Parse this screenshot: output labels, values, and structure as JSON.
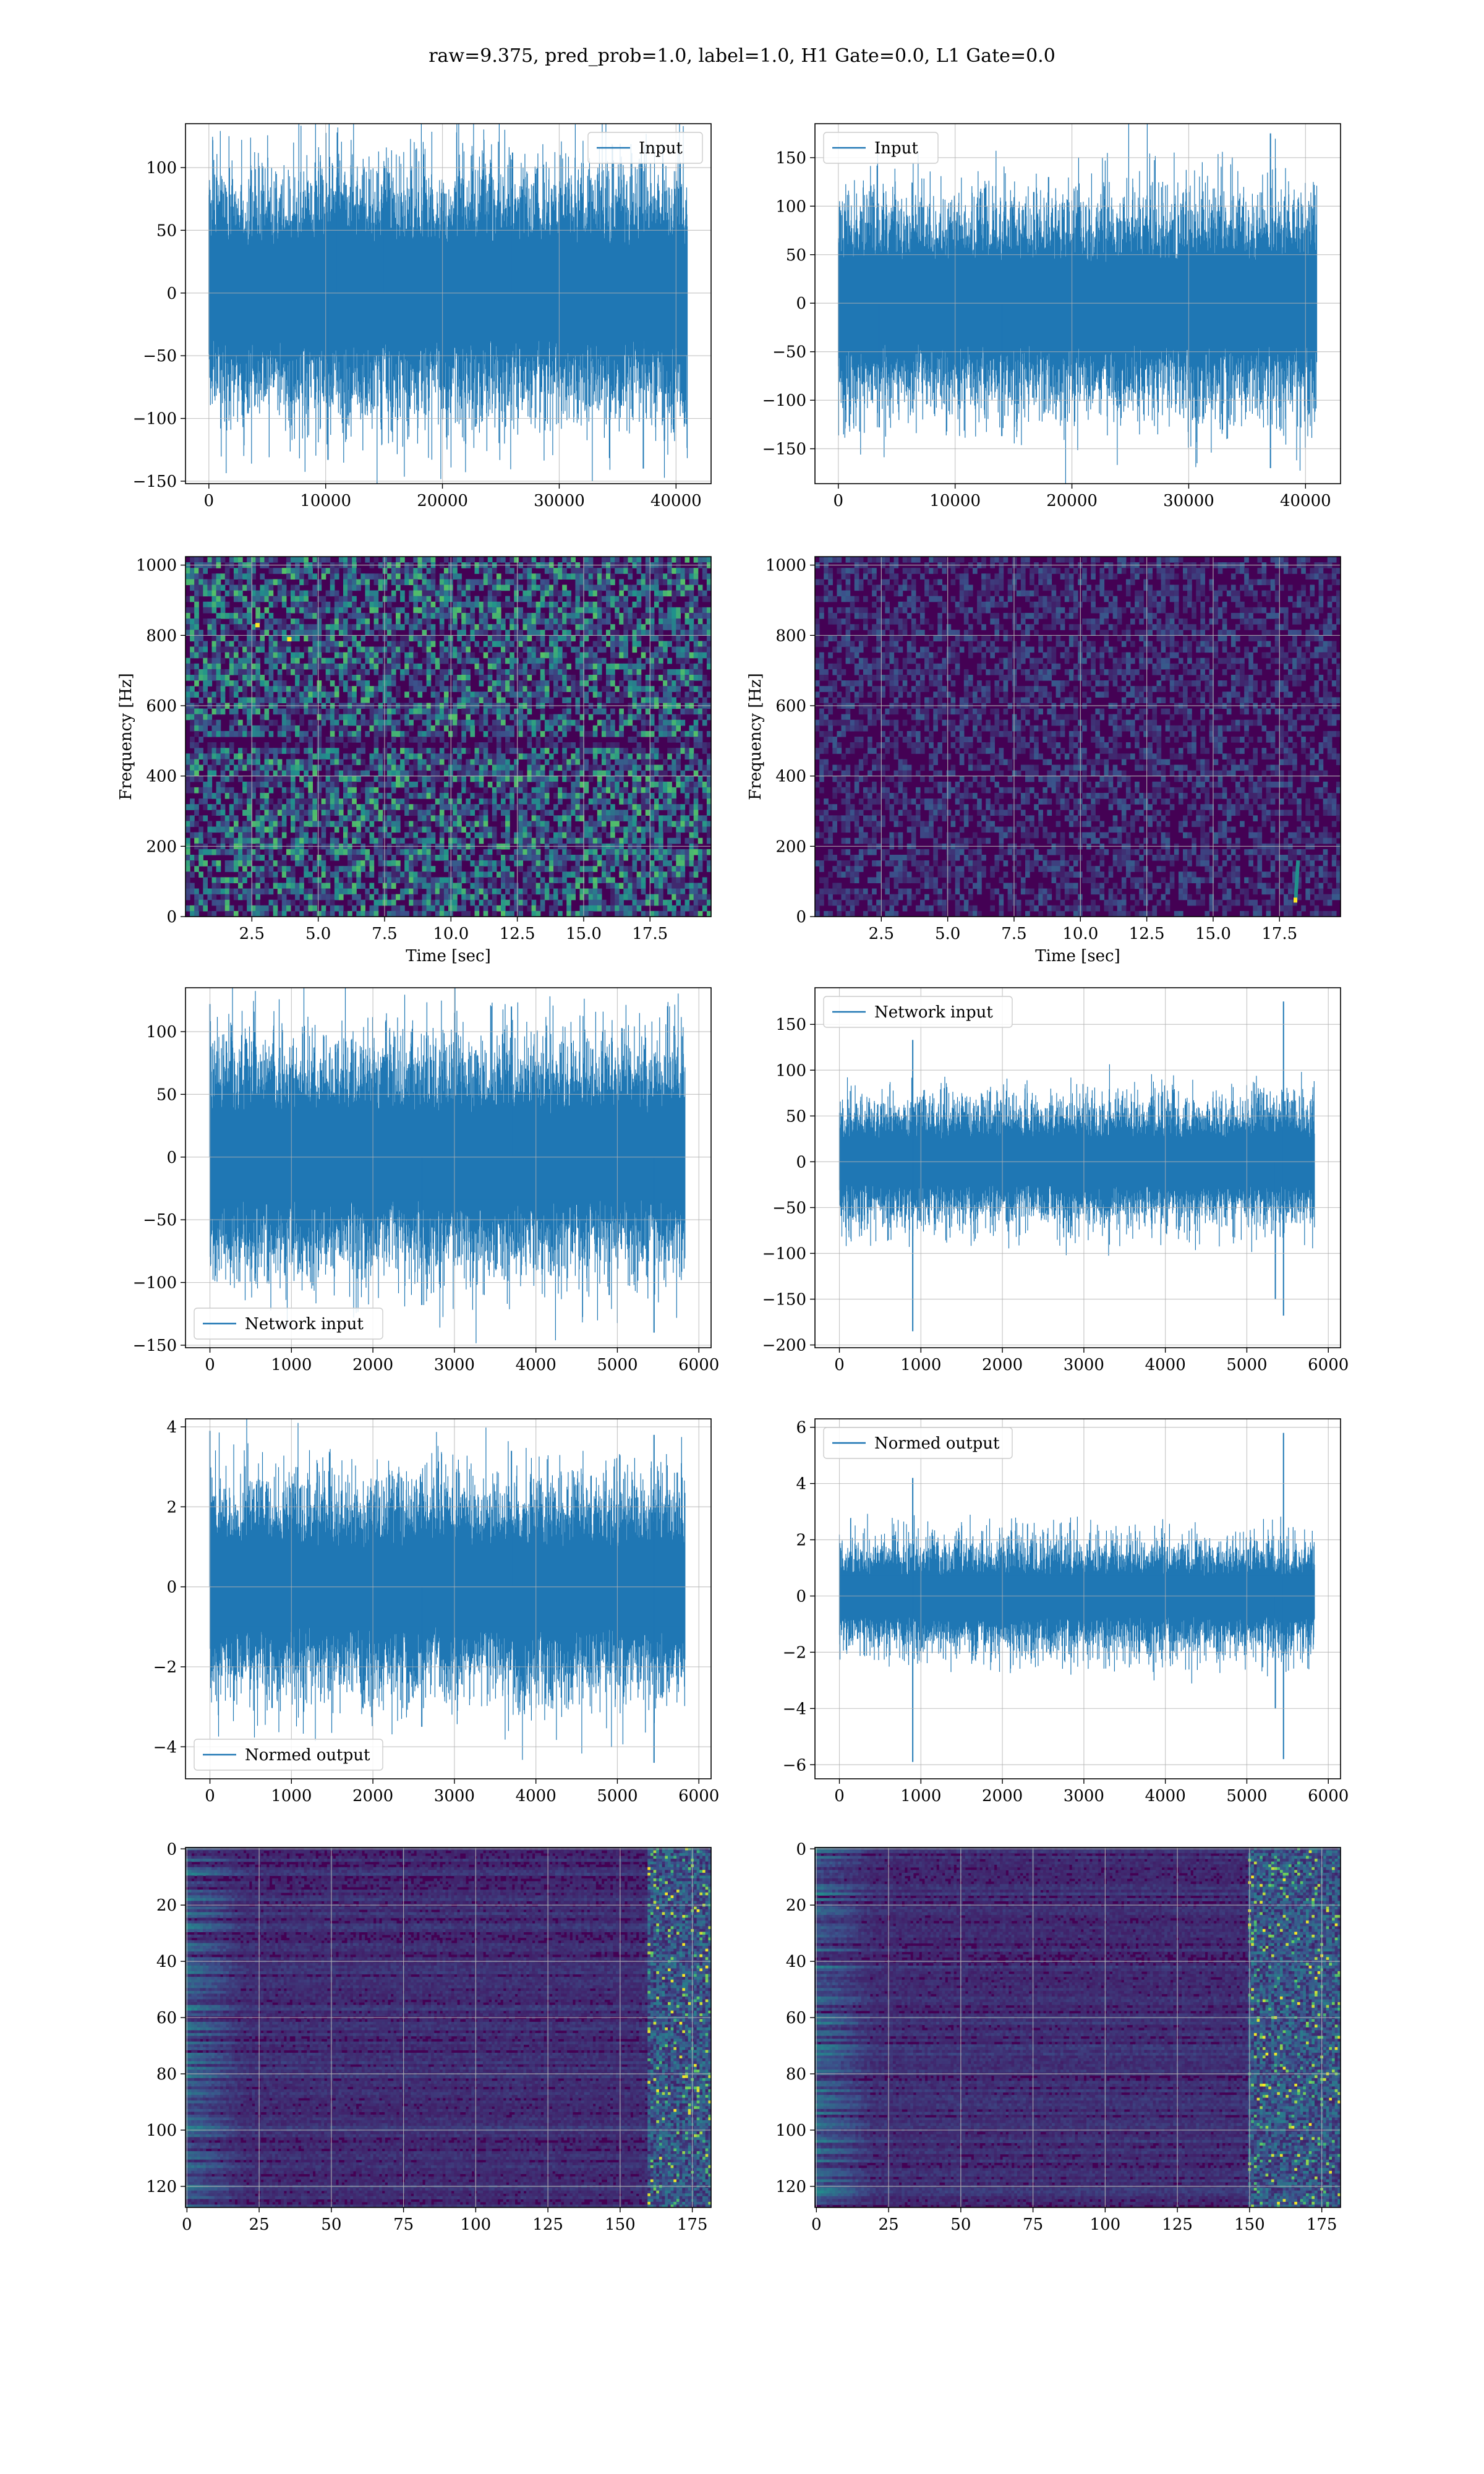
{
  "figure": {
    "suptitle": "raw=9.375, pred_prob=1.0, label=1.0, H1 Gate=0.0, L1 Gate=0.0"
  },
  "colors": {
    "series": "#1f77b4",
    "grid": "#b0b0b0",
    "viridis_low": "#440154",
    "viridis_mid": "#21918c",
    "viridis_high": "#fde725"
  },
  "chart_data": [
    {
      "id": "p00",
      "type": "line",
      "legend": "Input",
      "legend_loc": "upper right",
      "xlim": [
        -2000,
        43000
      ],
      "ylim": [
        -152,
        135
      ],
      "xticks": [
        0,
        10000,
        20000,
        30000,
        40000
      ],
      "yticks": [
        -150,
        -100,
        -50,
        0,
        50,
        100
      ],
      "series": [
        {
          "name": "Input",
          "x_range": [
            0,
            40960
          ],
          "band": 68,
          "peak": 112,
          "trough": -100,
          "spikes": [
            [
              11000,
              128
            ],
            [
              10200,
              -133
            ],
            [
              37200,
              -140
            ],
            [
              39000,
              -118
            ],
            [
              15000,
              100
            ],
            [
              26000,
              112
            ]
          ]
        }
      ],
      "grid": true
    },
    {
      "id": "p01",
      "type": "line",
      "legend": "Input",
      "legend_loc": "upper left",
      "xlim": [
        -2000,
        43000
      ],
      "ylim": [
        -186,
        185
      ],
      "xticks": [
        0,
        10000,
        20000,
        30000,
        40000
      ],
      "yticks": [
        -150,
        -100,
        -50,
        0,
        50,
        100,
        150
      ],
      "series": [
        {
          "name": "Input",
          "x_range": [
            0,
            40960
          ],
          "band": 75,
          "peak": 115,
          "trough": -115,
          "spikes": [
            [
              37000,
              175
            ],
            [
              37000,
              -170
            ],
            [
              3500,
              -128
            ],
            [
              14000,
              -137
            ],
            [
              18000,
              130
            ]
          ]
        }
      ],
      "grid": true
    },
    {
      "id": "p10",
      "type": "heatmap",
      "xlabel": "Time [sec]",
      "ylabel": "Frequency [Hz]",
      "xlim": [
        0,
        19.8
      ],
      "ylim": [
        0,
        1024
      ],
      "xticks": [
        2.5,
        5.0,
        7.5,
        10.0,
        12.5,
        15.0,
        17.5
      ],
      "yticks": [
        0,
        200,
        400,
        600,
        800,
        1000
      ],
      "xtick_labels": [
        "2.5",
        "5.0",
        "7.5",
        "10.0",
        "12.5",
        "15.0",
        "17.5"
      ],
      "intensity": 0.42,
      "band_freq": 500,
      "hot_spots": [
        [
          2.7,
          830
        ],
        [
          3.9,
          790
        ]
      ],
      "grid": true
    },
    {
      "id": "p11",
      "type": "heatmap",
      "xlabel": "Time [sec]",
      "ylabel": "Frequency [Hz]",
      "xlim": [
        0,
        19.8
      ],
      "ylim": [
        0,
        1024
      ],
      "xticks": [
        2.5,
        5.0,
        7.5,
        10.0,
        12.5,
        15.0,
        17.5
      ],
      "yticks": [
        0,
        200,
        400,
        600,
        800,
        1000
      ],
      "xtick_labels": [
        "2.5",
        "5.0",
        "7.5",
        "10.0",
        "12.5",
        "15.0",
        "17.5"
      ],
      "intensity": 0.16,
      "chirp": [
        [
          18.1,
          40
        ],
        [
          18.2,
          160
        ]
      ],
      "grid": true
    },
    {
      "id": "p20",
      "type": "line",
      "legend": "Network input",
      "legend_loc": "lower left",
      "xlim": [
        -300,
        6150
      ],
      "ylim": [
        -152,
        135
      ],
      "xticks": [
        0,
        1000,
        2000,
        3000,
        4000,
        5000,
        6000
      ],
      "yticks": [
        -150,
        -100,
        -50,
        0,
        50,
        100
      ],
      "series": [
        {
          "name": "Network input",
          "x_range": [
            0,
            5830
          ],
          "band": 62,
          "peak": 105,
          "trough": -100,
          "spikes": [
            [
              0,
              122
            ],
            [
              5450,
              -140
            ],
            [
              2600,
              -118
            ],
            [
              3700,
              120
            ],
            [
              4900,
              -110
            ]
          ]
        }
      ],
      "grid": true
    },
    {
      "id": "p21",
      "type": "line",
      "legend": "Network input",
      "legend_loc": "upper left",
      "xlim": [
        -300,
        6150
      ],
      "ylim": [
        -203,
        190
      ],
      "xticks": [
        0,
        1000,
        2000,
        3000,
        4000,
        5000,
        6000
      ],
      "yticks": [
        -200,
        -150,
        -100,
        -50,
        0,
        50,
        100,
        150
      ],
      "series": [
        {
          "name": "Network input",
          "x_range": [
            0,
            5830
          ],
          "band": 45,
          "peak": 90,
          "trough": -95,
          "spikes": [
            [
              900,
              133
            ],
            [
              900,
              -185
            ],
            [
              5450,
              175
            ],
            [
              5450,
              -168
            ],
            [
              5350,
              -150
            ]
          ]
        }
      ],
      "grid": true
    },
    {
      "id": "p30",
      "type": "line",
      "legend": "Normed output",
      "legend_loc": "lower left",
      "xlim": [
        -300,
        6150
      ],
      "ylim": [
        -4.8,
        4.2
      ],
      "xticks": [
        0,
        1000,
        2000,
        3000,
        4000,
        5000,
        6000
      ],
      "yticks": [
        -4,
        -2,
        0,
        2,
        4
      ],
      "series": [
        {
          "name": "Normed output",
          "x_range": [
            0,
            5830
          ],
          "band": 1.8,
          "peak": 3.0,
          "trough": -3.0,
          "spikes": [
            [
              0,
              3.9
            ],
            [
              5450,
              -4.4
            ],
            [
              5450,
              3.8
            ],
            [
              2600,
              -3.5
            ],
            [
              3700,
              3.4
            ]
          ]
        }
      ],
      "grid": true
    },
    {
      "id": "p31",
      "type": "line",
      "legend": "Normed output",
      "legend_loc": "upper left",
      "xlim": [
        -300,
        6150
      ],
      "ylim": [
        -6.5,
        6.3
      ],
      "xticks": [
        0,
        1000,
        2000,
        3000,
        4000,
        5000,
        6000
      ],
      "yticks": [
        -6,
        -4,
        -2,
        0,
        2,
        4,
        6
      ],
      "series": [
        {
          "name": "Normed output",
          "x_range": [
            0,
            5830
          ],
          "band": 1.3,
          "peak": 2.8,
          "trough": -2.8,
          "spikes": [
            [
              900,
              4.2
            ],
            [
              900,
              -5.9
            ],
            [
              5450,
              5.8
            ],
            [
              5450,
              -5.8
            ],
            [
              5350,
              -4.0
            ]
          ]
        }
      ],
      "grid": true
    },
    {
      "id": "p40",
      "type": "heatmap",
      "xlim": [
        -0.5,
        181.5
      ],
      "ylim": [
        127.5,
        -0.5
      ],
      "xticks": [
        0,
        25,
        50,
        75,
        100,
        125,
        150,
        175
      ],
      "yticks": [
        0,
        20,
        40,
        60,
        80,
        100,
        120
      ],
      "intensity": 0.2,
      "active_cols": [
        160,
        181
      ],
      "grid": true
    },
    {
      "id": "p41",
      "type": "heatmap",
      "xlim": [
        -0.5,
        181.5
      ],
      "ylim": [
        127.5,
        -0.5
      ],
      "xticks": [
        0,
        25,
        50,
        75,
        100,
        125,
        150,
        175
      ],
      "yticks": [
        0,
        20,
        40,
        60,
        80,
        100,
        120
      ],
      "intensity": 0.18,
      "active_cols": [
        150,
        181
      ],
      "grid": true
    }
  ]
}
